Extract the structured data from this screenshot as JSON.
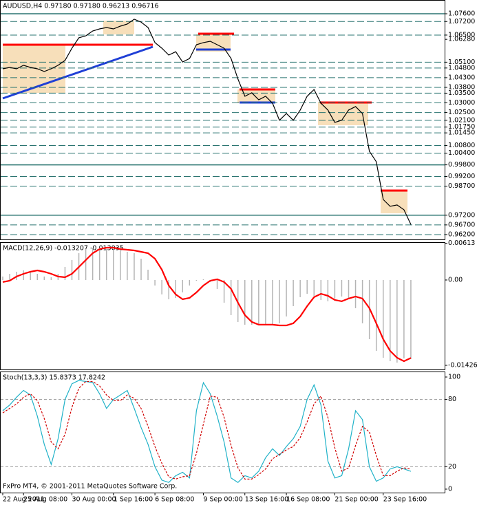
{
  "chart_data": [
    {
      "type": "line",
      "title": "AUDUSD,H4  0.97180 0.97180 0.96213 0.96716",
      "color": "#000000",
      "ylim": [
        0.9595,
        1.0831
      ],
      "yticks": [
        {
          "value": 1.076,
          "label": "1.07600",
          "line": "solid"
        },
        {
          "value": 1.072,
          "label": "1.07200",
          "line": "dashed"
        },
        {
          "value": 1.065,
          "label": "1.06500",
          "line": "dashed"
        },
        {
          "value": 1.0628,
          "label": "1.06280",
          "line": "none"
        },
        {
          "value": 1.051,
          "label": "1.05100",
          "line": "dashed"
        },
        {
          "value": 1.048,
          "label": "1.04800",
          "line": "dashed"
        },
        {
          "value": 1.043,
          "label": "1.04300",
          "line": "dashed"
        },
        {
          "value": 1.038,
          "label": "1.03800",
          "line": "dashed"
        },
        {
          "value": 1.035,
          "label": "1.03500",
          "line": "dashed"
        },
        {
          "value": 1.03,
          "label": "1.03000",
          "line": "dashed"
        },
        {
          "value": 1.025,
          "label": "1.02500",
          "line": "dashed"
        },
        {
          "value": 1.021,
          "label": "1.02100",
          "line": "dashed"
        },
        {
          "value": 1.0175,
          "label": "1.01750",
          "line": "dashed"
        },
        {
          "value": 1.0145,
          "label": "1.01450",
          "line": "dashed"
        },
        {
          "value": 1.008,
          "label": "1.00800",
          "line": "dashed"
        },
        {
          "value": 1.004,
          "label": "1.00400",
          "line": "dashed"
        },
        {
          "value": 0.998,
          "label": "0.99800",
          "line": "solid"
        },
        {
          "value": 0.992,
          "label": "0.99200",
          "line": "dashed"
        },
        {
          "value": 0.987,
          "label": "0.98700",
          "line": "dashed"
        },
        {
          "value": 0.972,
          "label": "0.97200",
          "line": "solid"
        },
        {
          "value": 0.967,
          "label": "0.96700",
          "line": "dashed"
        },
        {
          "value": 0.962,
          "label": "0.96200",
          "line": "dashed"
        }
      ],
      "values": [
        1.0476,
        1.0483,
        1.0476,
        1.0494,
        1.0483,
        1.0476,
        1.0462,
        1.0476,
        1.0494,
        1.0519,
        1.0582,
        1.0636,
        1.0646,
        1.0671,
        1.0682,
        1.0689,
        1.0682,
        1.0696,
        1.0707,
        1.0732,
        1.0717,
        1.0689,
        1.0611,
        1.0582,
        1.0547,
        1.0564,
        1.0511,
        1.0529,
        1.06,
        1.0611,
        1.0618,
        1.06,
        1.0582,
        1.0529,
        1.0423,
        1.0334,
        1.0352,
        1.0316,
        1.0334,
        1.0298,
        1.021,
        1.0245,
        1.021,
        1.0263,
        1.0334,
        1.0369,
        1.0298,
        1.0263,
        1.0199,
        1.021,
        1.0263,
        1.0281,
        1.0245,
        1.005,
        0.9996,
        0.9801,
        0.9766,
        0.9773,
        0.9748,
        0.96716
      ]
    },
    {
      "type": "macd",
      "title": "MACD(12,26,9) -0.013207 -0.013035",
      "ylim": [
        -0.01495,
        0.00632
      ],
      "yticks": [
        0.00613,
        {
          "value": 0,
          "label": "0.00"
        },
        -0.01426
      ],
      "series": [
        {
          "color": "#b4b4b4",
          "kind": "bar",
          "values": [
            0.00058,
            0.00103,
            0.00138,
            0.00161,
            0.00138,
            0.00103,
            0.00058,
            0.00046,
            0.00103,
            0.00218,
            0.00333,
            0.00448,
            0.00517,
            0.0054,
            0.0054,
            0.00517,
            0.00506,
            0.00494,
            0.00471,
            0.00448,
            0.00356,
            0.00172,
            -0.00092,
            -0.00241,
            -0.00322,
            -0.00299,
            -0.00207,
            -0.00092,
            -0.00012,
            0.00012,
            -0.00034,
            -0.00149,
            -0.00379,
            -0.00586,
            -0.00701,
            -0.00747,
            -0.00747,
            -0.00747,
            -0.00759,
            -0.00759,
            -0.00724,
            -0.00609,
            -0.00437,
            -0.00287,
            -0.0023,
            -0.00264,
            -0.00333,
            -0.00356,
            -0.0031,
            -0.00276,
            -0.0031,
            -0.00471,
            -0.00724,
            -0.00989,
            -0.01184,
            -0.01299,
            -0.01357,
            -0.0138,
            -0.0131,
            -0.013207
          ]
        },
        {
          "color": "#ff0000",
          "kind": "line",
          "values": [
            -0.00034,
            -0.00012,
            0.00058,
            0.00103,
            0.00138,
            0.00161,
            0.00138,
            0.00103,
            0.00058,
            0.00046,
            0.00103,
            0.00218,
            0.00333,
            0.00448,
            0.00517,
            0.0054,
            0.0054,
            0.00517,
            0.00506,
            0.00494,
            0.00471,
            0.00448,
            0.00356,
            0.00172,
            -0.00092,
            -0.00241,
            -0.00322,
            -0.00299,
            -0.00207,
            -0.00092,
            -0.00012,
            0.00012,
            -0.00034,
            -0.00149,
            -0.00379,
            -0.00586,
            -0.00701,
            -0.00747,
            -0.00747,
            -0.00747,
            -0.00759,
            -0.00759,
            -0.00724,
            -0.00609,
            -0.00437,
            -0.00287,
            -0.0023,
            -0.00264,
            -0.00333,
            -0.00356,
            -0.0031,
            -0.00276,
            -0.0031,
            -0.00471,
            -0.00724,
            -0.00989,
            -0.01184,
            -0.01299,
            -0.01357,
            -0.013035
          ]
        }
      ]
    },
    {
      "type": "line",
      "title": "Stoch(13,3,3) 15.8373 17.8242",
      "ylim": [
        -3.1,
        104.9
      ],
      "yticks": [
        100,
        80,
        20,
        0
      ],
      "levels": [
        80,
        20
      ],
      "footer": "FxPro MT4, © 2001-2011 MetaQuotes Software Corp.",
      "categories": [
        "22 Aug 2011",
        null,
        null,
        "25 Aug 08:00",
        null,
        null,
        null,
        null,
        null,
        null,
        "30 Aug 00:00",
        null,
        null,
        null,
        null,
        null,
        "1 Sep 16:00",
        null,
        null,
        null,
        null,
        null,
        "6 Sep 08:00",
        null,
        null,
        null,
        null,
        null,
        null,
        "9 Sep 00:00",
        null,
        null,
        null,
        null,
        null,
        "13 Sep 16:00",
        null,
        null,
        null,
        null,
        null,
        "16 Sep 08:00",
        null,
        null,
        null,
        null,
        null,
        null,
        "21 Sep 00:00",
        null,
        null,
        null,
        null,
        null,
        null,
        "23 Sep 16:00",
        null,
        null,
        null,
        null
      ],
      "series": [
        {
          "color": "#20b2c8",
          "dash": false,
          "values": [
            70,
            75,
            82,
            88,
            84,
            65,
            40,
            22,
            45,
            80,
            94,
            97,
            96,
            95,
            85,
            72,
            80,
            84,
            88,
            72,
            55,
            40,
            20,
            8,
            6,
            12,
            15,
            10,
            70,
            95,
            85,
            65,
            42,
            10,
            6,
            12,
            10,
            16,
            28,
            36,
            30,
            38,
            45,
            56,
            80,
            93,
            75,
            25,
            10,
            12,
            36,
            70,
            62,
            20,
            7,
            10,
            18,
            20,
            18,
            15.8373
          ]
        },
        {
          "color": "#d00000",
          "dash": true,
          "values": [
            68,
            72,
            76,
            82,
            85,
            79,
            63,
            42,
            36,
            49,
            73,
            90,
            96,
            96,
            92,
            84,
            79,
            79,
            84,
            81,
            72,
            56,
            38,
            23,
            11,
            9,
            11,
            12,
            32,
            58,
            83,
            82,
            64,
            39,
            19,
            9,
            9,
            13,
            18,
            27,
            31,
            35,
            38,
            46,
            60,
            76,
            83,
            64,
            37,
            16,
            19,
            39,
            56,
            51,
            30,
            12,
            12,
            16,
            19,
            17.8242
          ]
        }
      ]
    }
  ]
}
